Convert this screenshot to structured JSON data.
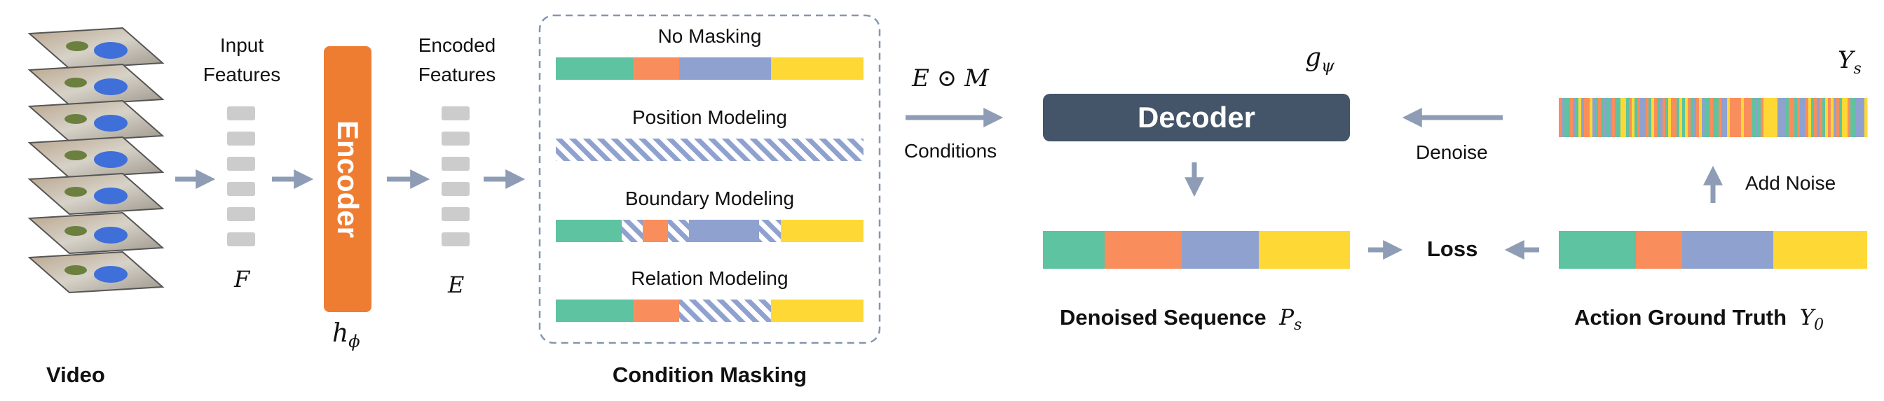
{
  "video": {
    "label": "Video"
  },
  "input_features": {
    "label_line1": "Input",
    "label_line2": "Features",
    "symbol": "F"
  },
  "encoder": {
    "label": "Encoder",
    "symbol": "h_ϕ",
    "symbol_base": "h",
    "symbol_sub": "ϕ"
  },
  "encoded_features": {
    "label_line1": "Encoded",
    "label_line2": "Features",
    "symbol": "E"
  },
  "condition_masking": {
    "title": "Condition Masking",
    "rows": [
      {
        "label": "No Masking"
      },
      {
        "label": "Position Modeling"
      },
      {
        "label": "Boundary Modeling"
      },
      {
        "label": "Relation Modeling"
      }
    ]
  },
  "conditions": {
    "formula": "E ⊙ M",
    "label": "Conditions"
  },
  "decoder": {
    "label": "Decoder",
    "symbol": "g_ψ",
    "symbol_base": "g",
    "symbol_sub": "ψ"
  },
  "denoise": {
    "label": "Denoise"
  },
  "add_noise": {
    "label": "Add Noise"
  },
  "noisy_sequence": {
    "symbol_base": "Y",
    "symbol_sub": "s"
  },
  "loss": {
    "label": "Loss"
  },
  "denoised_sequence": {
    "label": "Denoised Sequence",
    "symbol_base": "P",
    "symbol_sub": "s"
  },
  "ground_truth": {
    "label": "Action Ground Truth",
    "symbol_base": "Y",
    "symbol_sub": "0"
  },
  "colors": {
    "teal": "#5dc3a0",
    "orange": "#f98e5c",
    "blue": "#8fa1cf",
    "yellow": "#fed935",
    "encoder": "#ef7d31",
    "decoder": "#445469",
    "arrow": "#8e9db5",
    "feature_block": "#cccccc",
    "dashed_border": "#8496b0"
  }
}
